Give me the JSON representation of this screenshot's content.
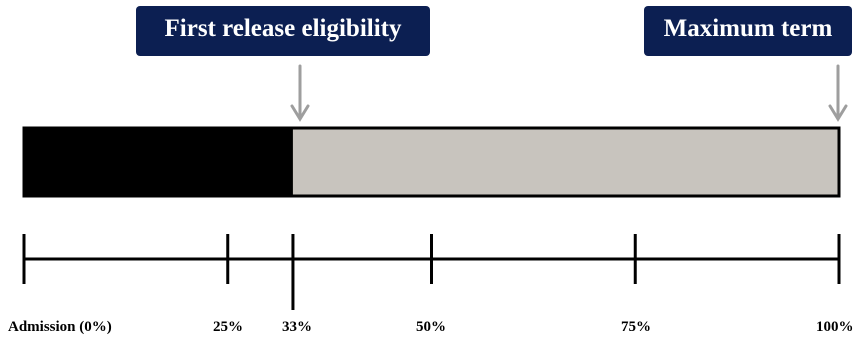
{
  "callouts": {
    "first_release": "First release eligibility",
    "maximum_term": "Maximum term"
  },
  "bar": {
    "served_fraction": 0.33,
    "served_color": "#000000",
    "remaining_color": "#c8c4be"
  },
  "axis": {
    "ticks": [
      {
        "value": 0,
        "label": "Admission (0%)"
      },
      {
        "value": 25,
        "label": "25%"
      },
      {
        "value": 33,
        "label": "33%"
      },
      {
        "value": 50,
        "label": "50%"
      },
      {
        "value": 75,
        "label": "75%"
      },
      {
        "value": 100,
        "label": "100%"
      }
    ]
  },
  "colors": {
    "callout_background": "#0c1f52",
    "callout_text": "#ffffff",
    "arrow": "#9e9e9e"
  }
}
